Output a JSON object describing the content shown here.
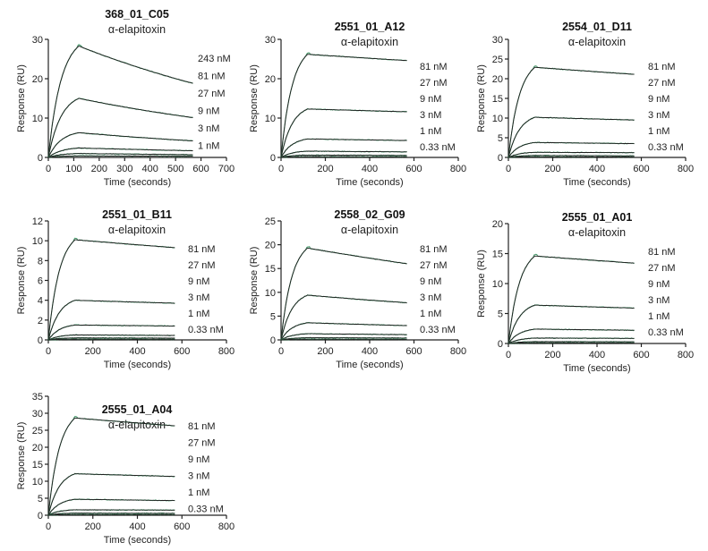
{
  "chart_data": [
    {
      "type": "line",
      "title": "368_01_C05",
      "subtitle": "α-elapitoxin",
      "xlabel": "Time (seconds)",
      "ylabel": "Response (RU)",
      "xlim": [
        0,
        700
      ],
      "ylim": [
        0,
        30
      ],
      "xticks": [
        0,
        100,
        200,
        300,
        400,
        500,
        600,
        700
      ],
      "yticks": [
        0,
        10,
        20,
        30
      ],
      "concentration_labels": [
        "243 nM",
        "81 nM",
        "27 nM",
        "9 nM",
        "3 nM",
        "1 nM"
      ],
      "association_end": 120,
      "dissociation_end": 570,
      "series": [
        {
          "name": "243 nM",
          "peak": 28.3,
          "end": 18.8
        },
        {
          "name": "81 nM",
          "peak": 15.0,
          "end": 10.1
        },
        {
          "name": "27 nM",
          "peak": 6.3,
          "end": 4.2
        },
        {
          "name": "9 nM",
          "peak": 2.4,
          "end": 1.7
        },
        {
          "name": "3 nM",
          "peak": 1.0,
          "end": 0.7
        },
        {
          "name": "1 nM",
          "peak": 0.4,
          "end": 0.3
        }
      ]
    },
    {
      "type": "line",
      "title": "2551_01_A12",
      "subtitle": "α-elapitoxin",
      "xlabel": "Time (seconds)",
      "ylabel": "Response (RU)",
      "xlim": [
        0,
        800
      ],
      "ylim": [
        0,
        30
      ],
      "xticks": [
        0,
        200,
        400,
        600,
        800
      ],
      "yticks": [
        0,
        10,
        20,
        30
      ],
      "concentration_labels": [
        "81 nM",
        "27 nM",
        "9 nM",
        "3 nM",
        "1 nM",
        "0.33 nM"
      ],
      "association_end": 120,
      "dissociation_end": 570,
      "series": [
        {
          "name": "81 nM",
          "peak": 26.2,
          "end": 24.6
        },
        {
          "name": "27 nM",
          "peak": 12.3,
          "end": 11.6
        },
        {
          "name": "9 nM",
          "peak": 4.7,
          "end": 4.3
        },
        {
          "name": "3 nM",
          "peak": 1.6,
          "end": 1.4
        },
        {
          "name": "1 nM",
          "peak": 0.6,
          "end": 0.5
        },
        {
          "name": "0.33 nM",
          "peak": 0.2,
          "end": 0.15
        }
      ]
    },
    {
      "type": "line",
      "title": "2554_01_D11",
      "subtitle": "α-elapitoxin",
      "xlabel": "Time (seconds)",
      "ylabel": "Response (RU)",
      "xlim": [
        0,
        800
      ],
      "ylim": [
        0,
        30
      ],
      "xticks": [
        0,
        200,
        400,
        600,
        800
      ],
      "yticks": [
        0,
        5,
        10,
        15,
        20,
        25,
        30
      ],
      "concentration_labels": [
        "81 nM",
        "27 nM",
        "9 nM",
        "3 nM",
        "1 nM",
        "0.33 nM"
      ],
      "association_end": 120,
      "dissociation_end": 570,
      "series": [
        {
          "name": "81 nM",
          "peak": 22.9,
          "end": 21.1
        },
        {
          "name": "27 nM",
          "peak": 10.2,
          "end": 9.5
        },
        {
          "name": "9 nM",
          "peak": 3.8,
          "end": 3.5
        },
        {
          "name": "3 nM",
          "peak": 1.3,
          "end": 1.2
        },
        {
          "name": "1 nM",
          "peak": 0.5,
          "end": 0.4
        },
        {
          "name": "0.33 nM",
          "peak": 0.15,
          "end": 0.1
        }
      ]
    },
    {
      "type": "line",
      "title": "2551_01_B11",
      "subtitle": "α-elapitoxin",
      "xlabel": "Time (seconds)",
      "ylabel": "Response (RU)",
      "xlim": [
        0,
        800
      ],
      "ylim": [
        0,
        12
      ],
      "xticks": [
        0,
        200,
        400,
        600,
        800
      ],
      "yticks": [
        0,
        2,
        4,
        6,
        8,
        10,
        12
      ],
      "concentration_labels": [
        "81 nM",
        "27 nM",
        "9 nM",
        "3 nM",
        "1 nM",
        "0.33 nM"
      ],
      "association_end": 120,
      "dissociation_end": 570,
      "series": [
        {
          "name": "81 nM",
          "peak": 10.1,
          "end": 9.3
        },
        {
          "name": "27 nM",
          "peak": 4.0,
          "end": 3.7
        },
        {
          "name": "9 nM",
          "peak": 1.5,
          "end": 1.4
        },
        {
          "name": "3 nM",
          "peak": 0.5,
          "end": 0.45
        },
        {
          "name": "1 nM",
          "peak": 0.2,
          "end": 0.18
        },
        {
          "name": "0.33 nM",
          "peak": 0.07,
          "end": 0.06
        }
      ]
    },
    {
      "type": "line",
      "title": "2558_02_G09",
      "subtitle": "α-elapitoxin",
      "xlabel": "Time (seconds)",
      "ylabel": "Response (RU)",
      "xlim": [
        0,
        800
      ],
      "ylim": [
        0,
        25
      ],
      "xticks": [
        0,
        200,
        400,
        600,
        800
      ],
      "yticks": [
        0,
        5,
        10,
        15,
        20,
        25
      ],
      "concentration_labels": [
        "81 nM",
        "27 nM",
        "9 nM",
        "3 nM",
        "1 nM",
        "0.33 nM"
      ],
      "association_end": 120,
      "dissociation_end": 570,
      "series": [
        {
          "name": "81 nM",
          "peak": 19.3,
          "end": 16.0
        },
        {
          "name": "27 nM",
          "peak": 9.4,
          "end": 7.8
        },
        {
          "name": "9 nM",
          "peak": 3.6,
          "end": 3.0
        },
        {
          "name": "3 nM",
          "peak": 1.3,
          "end": 1.1
        },
        {
          "name": "1 nM",
          "peak": 0.45,
          "end": 0.4
        },
        {
          "name": "0.33 nM",
          "peak": 0.15,
          "end": 0.12
        }
      ]
    },
    {
      "type": "line",
      "title": "2555_01_A01",
      "subtitle": "α-elapitoxin",
      "xlabel": "Time (seconds)",
      "ylabel": "Response (RU)",
      "xlim": [
        0,
        800
      ],
      "ylim": [
        0,
        20
      ],
      "xticks": [
        0,
        200,
        400,
        600,
        800
      ],
      "yticks": [
        0,
        5,
        10,
        15,
        20
      ],
      "concentration_labels": [
        "81 nM",
        "27 nM",
        "9 nM",
        "3 nM",
        "1 nM",
        "0.33 nM"
      ],
      "association_end": 120,
      "dissociation_end": 570,
      "series": [
        {
          "name": "81 nM",
          "peak": 14.6,
          "end": 13.4
        },
        {
          "name": "27 nM",
          "peak": 6.4,
          "end": 5.9
        },
        {
          "name": "9 nM",
          "peak": 2.4,
          "end": 2.2
        },
        {
          "name": "3 nM",
          "peak": 0.9,
          "end": 0.85
        },
        {
          "name": "1 nM",
          "peak": 0.3,
          "end": 0.28
        },
        {
          "name": "0.33 nM",
          "peak": 0.1,
          "end": 0.09
        }
      ]
    },
    {
      "type": "line",
      "title": "2555_01_A04",
      "subtitle": "α-elapitoxin",
      "xlabel": "Time (seconds)",
      "ylabel": "Response (RU)",
      "xlim": [
        0,
        800
      ],
      "ylim": [
        0,
        35
      ],
      "xticks": [
        0,
        200,
        400,
        600,
        800
      ],
      "yticks": [
        0,
        5,
        10,
        15,
        20,
        25,
        30,
        35
      ],
      "concentration_labels": [
        "81 nM",
        "27 nM",
        "9 nM",
        "3 nM",
        "1 nM",
        "0.33 nM"
      ],
      "association_end": 120,
      "dissociation_end": 570,
      "series": [
        {
          "name": "81 nM",
          "peak": 28.6,
          "end": 26.3
        },
        {
          "name": "27 nM",
          "peak": 12.2,
          "end": 11.4
        },
        {
          "name": "9 nM",
          "peak": 4.7,
          "end": 4.3
        },
        {
          "name": "3 nM",
          "peak": 1.6,
          "end": 1.5
        },
        {
          "name": "1 nM",
          "peak": 0.6,
          "end": 0.55
        },
        {
          "name": "0.33 nM",
          "peak": 0.2,
          "end": 0.18
        }
      ]
    }
  ],
  "colors": {
    "data": "#2e8b57",
    "fit": "#1f1f1f",
    "axis": "#222222"
  }
}
